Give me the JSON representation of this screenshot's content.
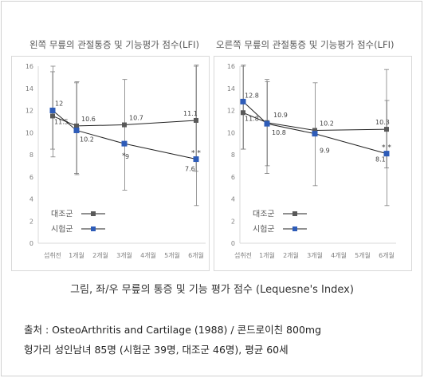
{
  "caption": "그림, 좌/우 무릎의 통증 및 기능 평가 점수 (Lequesne's Index)",
  "source_line1": "출처 : OsteoArthritis and Cartilage (1988) / 콘드로이친 800mg",
  "source_line2": "헝가리 성인남녀 85명 (시험군 39명, 대조군 46명), 평균 60세",
  "colors": {
    "control": "#595959",
    "treatment": "#2e5cb8",
    "grid": "#d9d9d9"
  },
  "chart_data": [
    {
      "type": "line",
      "title": "왼쪽 무릎의 관절통증 및 기능평가 점수(LFI)",
      "categories": [
        "섭취전",
        "1개월",
        "2개월",
        "3개월",
        "4개월",
        "5개월",
        "6개월"
      ],
      "ylim": [
        0,
        16
      ],
      "yticks": [
        "0",
        "2",
        "4",
        "6",
        "8",
        "10",
        "12",
        "14",
        "16"
      ],
      "grid": false,
      "legend_position": "bottom-left",
      "series": [
        {
          "name": "대조군",
          "points": [
            [
              0,
              11.5
            ],
            [
              1,
              10.6
            ],
            [
              3,
              10.7
            ],
            [
              6,
              11.1
            ]
          ],
          "labels": [
            "11.5",
            "10.6",
            "10.7",
            "11.1"
          ],
          "error_bars": [
            [
              8.5,
              15.5
            ],
            [
              6.3,
              14.5
            ],
            null,
            [
              6.5,
              16.0
            ]
          ]
        },
        {
          "name": "시험군",
          "points": [
            [
              0,
              12.0
            ],
            [
              1,
              10.2
            ],
            [
              3,
              9.0
            ],
            [
              6,
              7.6
            ]
          ],
          "labels": [
            "12",
            "10.2",
            "9",
            "7.6"
          ],
          "error_bars": [
            [
              7.8,
              16.0
            ],
            [
              6.2,
              14.6
            ],
            [
              4.8,
              14.8
            ],
            [
              3.4,
              16.1
            ]
          ]
        }
      ],
      "significance": [
        {
          "x": 3,
          "text": "*"
        },
        {
          "x": 6,
          "text": "* *"
        }
      ]
    },
    {
      "type": "line",
      "title": "오른쪽 무릎의 관절통증 및 기능평가 점수(LFI)",
      "categories": [
        "섭취전",
        "1개월",
        "2개월",
        "3개월",
        "4개월",
        "5개월",
        "6개월"
      ],
      "ylim": [
        0,
        16
      ],
      "yticks": [
        "0",
        "2",
        "4",
        "6",
        "8",
        "10",
        "12",
        "14",
        "16"
      ],
      "grid": false,
      "legend_position": "bottom-left",
      "series": [
        {
          "name": "대조군",
          "points": [
            [
              0,
              11.8
            ],
            [
              1,
              10.9
            ],
            [
              3,
              10.2
            ],
            [
              6,
              10.3
            ]
          ],
          "labels": [
            "11.8",
            "10.9",
            "10.2",
            "10.3"
          ],
          "error_bars": [
            [
              8.5,
              16.0
            ],
            [
              6.3,
              14.8
            ],
            null,
            [
              6.8,
              15.7
            ]
          ]
        },
        {
          "name": "시험군",
          "points": [
            [
              0,
              12.8
            ],
            [
              1,
              10.8
            ],
            [
              3,
              9.9
            ],
            [
              6,
              8.1
            ]
          ],
          "labels": [
            "12.8",
            "10.8",
            "9.9",
            "8.1"
          ],
          "error_bars": [
            [
              8.5,
              16.1
            ],
            [
              7.0,
              14.6
            ],
            [
              5.2,
              14.5
            ],
            [
              3.4,
              12.9
            ]
          ]
        }
      ],
      "significance": [
        {
          "x": 6,
          "text": "* *"
        }
      ]
    }
  ]
}
